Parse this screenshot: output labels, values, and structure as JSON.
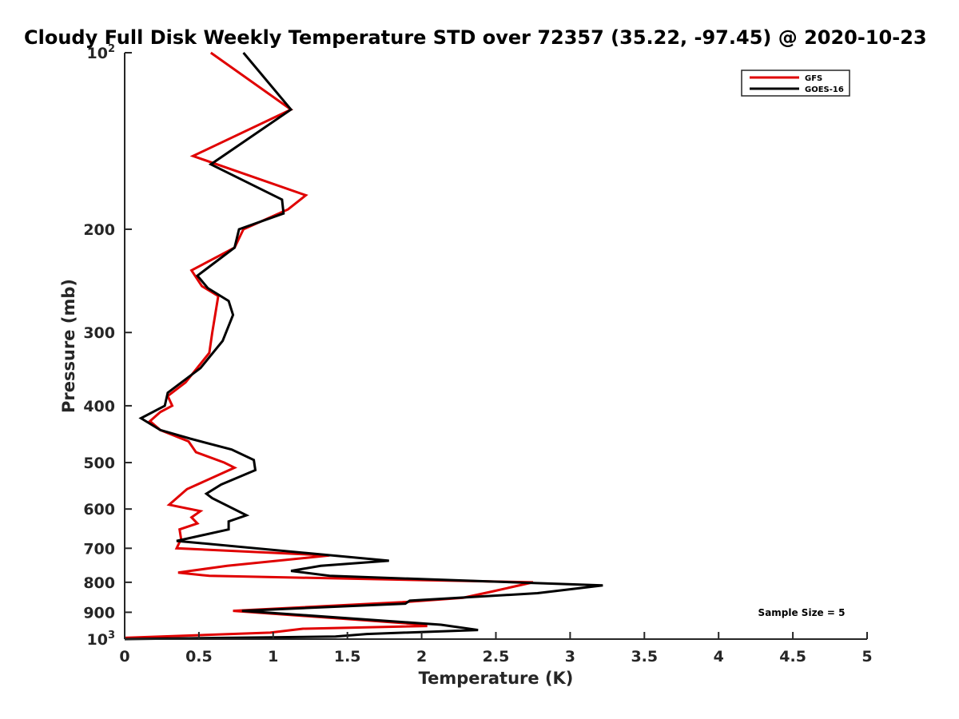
{
  "chart_data": {
    "type": "line",
    "title": "Cloudy Full Disk Weekly Temperature STD over 72357 (35.22, -97.45) @ 2020-10-23",
    "xlabel": "Temperature (K)",
    "ylabel": "Pressure (mb)",
    "xlim": [
      0,
      5
    ],
    "ylim": [
      1000,
      100
    ],
    "yscale": "log",
    "y_reversed": true,
    "xticks": [
      0,
      0.5,
      1,
      1.5,
      2,
      2.5,
      3,
      3.5,
      4,
      4.5,
      5
    ],
    "xtick_labels": [
      "0",
      "0.5",
      "1",
      "1.5",
      "2",
      "2.5",
      "3",
      "3.5",
      "4",
      "4.5",
      "5"
    ],
    "yticks": [
      {
        "value": 100,
        "base": "10",
        "exp": "2",
        "label": ""
      },
      {
        "value": 200,
        "base": "",
        "exp": "",
        "label": "200"
      },
      {
        "value": 300,
        "base": "",
        "exp": "",
        "label": "300"
      },
      {
        "value": 400,
        "base": "",
        "exp": "",
        "label": "400"
      },
      {
        "value": 500,
        "base": "",
        "exp": "",
        "label": "500"
      },
      {
        "value": 600,
        "base": "",
        "exp": "",
        "label": "600"
      },
      {
        "value": 700,
        "base": "",
        "exp": "",
        "label": "700"
      },
      {
        "value": 800,
        "base": "",
        "exp": "",
        "label": "800"
      },
      {
        "value": 900,
        "base": "",
        "exp": "",
        "label": "900"
      },
      {
        "value": 1000,
        "base": "10",
        "exp": "3",
        "label": ""
      }
    ],
    "grid": false,
    "legend_position": "top-right",
    "annotation": "Sample Size = 5",
    "series": [
      {
        "name": "GFS",
        "color": "#e00000",
        "points": [
          [
            0.58,
            100
          ],
          [
            1.12,
            125
          ],
          [
            0.46,
            150
          ],
          [
            1.22,
            175
          ],
          [
            1.1,
            185
          ],
          [
            0.8,
            200
          ],
          [
            0.74,
            215
          ],
          [
            0.45,
            235
          ],
          [
            0.52,
            250
          ],
          [
            0.63,
            260
          ],
          [
            0.59,
            300
          ],
          [
            0.57,
            325
          ],
          [
            0.41,
            365
          ],
          [
            0.29,
            385
          ],
          [
            0.32,
            400
          ],
          [
            0.24,
            410
          ],
          [
            0.17,
            425
          ],
          [
            0.24,
            440
          ],
          [
            0.43,
            460
          ],
          [
            0.48,
            480
          ],
          [
            0.67,
            500
          ],
          [
            0.74,
            510
          ],
          [
            0.42,
            555
          ],
          [
            0.3,
            590
          ],
          [
            0.51,
            605
          ],
          [
            0.45,
            620
          ],
          [
            0.49,
            635
          ],
          [
            0.37,
            650
          ],
          [
            0.38,
            675
          ],
          [
            0.35,
            700
          ],
          [
            1.38,
            720
          ],
          [
            0.69,
            750
          ],
          [
            0.36,
            770
          ],
          [
            0.57,
            780
          ],
          [
            2.75,
            800
          ],
          [
            2.47,
            830
          ],
          [
            2.28,
            850
          ],
          [
            1.87,
            865
          ],
          [
            0.73,
            895
          ],
          [
            2.03,
            945
          ],
          [
            2.03,
            950
          ],
          [
            1.2,
            960
          ],
          [
            0.98,
            975
          ],
          [
            0.0,
            995
          ]
        ]
      },
      {
        "name": "GOES-16",
        "color": "#000000",
        "points": [
          [
            0.8,
            100
          ],
          [
            1.12,
            125
          ],
          [
            0.58,
            155
          ],
          [
            1.06,
            178
          ],
          [
            1.07,
            188
          ],
          [
            0.77,
            200
          ],
          [
            0.74,
            215
          ],
          [
            0.49,
            240
          ],
          [
            0.56,
            252
          ],
          [
            0.7,
            265
          ],
          [
            0.73,
            280
          ],
          [
            0.66,
            310
          ],
          [
            0.51,
            345
          ],
          [
            0.29,
            380
          ],
          [
            0.27,
            400
          ],
          [
            0.11,
            420
          ],
          [
            0.24,
            440
          ],
          [
            0.44,
            455
          ],
          [
            0.72,
            475
          ],
          [
            0.87,
            495
          ],
          [
            0.88,
            515
          ],
          [
            0.65,
            545
          ],
          [
            0.55,
            565
          ],
          [
            0.59,
            575
          ],
          [
            0.82,
            615
          ],
          [
            0.7,
            630
          ],
          [
            0.7,
            650
          ],
          [
            0.35,
            680
          ],
          [
            1.78,
            735
          ],
          [
            1.32,
            750
          ],
          [
            1.12,
            765
          ],
          [
            1.38,
            780
          ],
          [
            3.22,
            810
          ],
          [
            2.78,
            835
          ],
          [
            1.92,
            860
          ],
          [
            1.89,
            870
          ],
          [
            0.79,
            895
          ],
          [
            2.13,
            945
          ],
          [
            2.38,
            965
          ],
          [
            1.63,
            980
          ],
          [
            1.42,
            990
          ],
          [
            0.0,
            1000
          ]
        ]
      }
    ]
  }
}
